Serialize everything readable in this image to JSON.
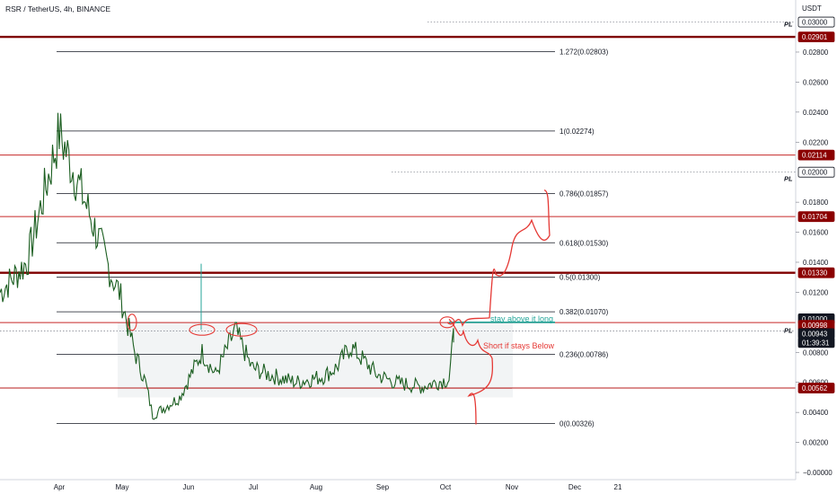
{
  "header": {
    "symbol": "RSR / TetherUS, 4h, BINANCE"
  },
  "price_axis": {
    "currency": "USDT",
    "ticks": [
      "0.02800",
      "0.02600",
      "0.02400",
      "0.02200",
      "0.01800",
      "0.01600",
      "0.01400",
      "0.01200",
      "0.00800",
      "0.00600",
      "0.00400",
      "0.00200",
      "−0.00000"
    ]
  },
  "price_tags": [
    {
      "label": "0.03000",
      "style": "outline"
    },
    {
      "label": "0.02901",
      "style": "red"
    },
    {
      "label": "0.02114",
      "style": "red"
    },
    {
      "label": "0.02000",
      "style": "outline"
    },
    {
      "label": "0.01704",
      "style": "red"
    },
    {
      "label": "0.01330",
      "style": "red"
    },
    {
      "label": "0.01000",
      "style": "black"
    },
    {
      "label": "0.00998",
      "style": "red"
    },
    {
      "label": "0.00943",
      "style": "black"
    },
    {
      "label": "01:39:31",
      "style": "black"
    },
    {
      "label": "0.00562",
      "style": "red"
    }
  ],
  "pl_labels": [
    "PL",
    "PL",
    "PL"
  ],
  "time_axis": [
    "Apr",
    "May",
    "Jun",
    "Jul",
    "Aug",
    "Sep",
    "Oct",
    "Nov",
    "Dec",
    "21"
  ],
  "fib_levels": [
    {
      "label": "1.272(0.02803)",
      "value": 0.02803
    },
    {
      "label": "1(0.02274)",
      "value": 0.02274
    },
    {
      "label": "0.786(0.01857)",
      "value": 0.01857
    },
    {
      "label": "0.618(0.01530)",
      "value": 0.0153
    },
    {
      "label": "0.5(0.01300)",
      "value": 0.013
    },
    {
      "label": "0.382(0.01070)",
      "value": 0.0107
    },
    {
      "label": "0.236(0.00786)",
      "value": 0.00786
    },
    {
      "label": "0(0.00326)",
      "value": 0.00326
    }
  ],
  "horizontal_lines": [
    {
      "value": 0.02901,
      "color": "#7f0000"
    },
    {
      "value": 0.02114,
      "color": "#c62828"
    },
    {
      "value": 0.01704,
      "color": "#c62828"
    },
    {
      "value": 0.0133,
      "color": "#7f0000"
    },
    {
      "value": 0.00998,
      "color": "#c62828"
    },
    {
      "value": 0.00562,
      "color": "#b71c1c"
    }
  ],
  "annotations": {
    "green_note": "stay above it long",
    "red_note": "Short if stays Below"
  },
  "colors": {
    "candles": "#1b5e20",
    "bull": "#26a69a",
    "red_line": "#c62828",
    "dark_red": "#7f0000",
    "green_note": "#26a69a",
    "red_note": "#e53935",
    "box": "#eceff1"
  },
  "chart_data": {
    "type": "line",
    "title": "RSR / TetherUS, 4h, BINANCE",
    "xlabel": "",
    "ylabel": "",
    "ylim": [
      0,
      0.03
    ],
    "x": [
      "Mar",
      "Apr",
      "Apr",
      "Apr",
      "Apr",
      "May",
      "May",
      "May",
      "May",
      "Jun",
      "Jun",
      "Jun",
      "Jun",
      "Jul",
      "Jul",
      "Jul",
      "Jul",
      "Aug",
      "Aug",
      "Aug",
      "Aug",
      "Sep",
      "Sep",
      "Sep",
      "Sep",
      "Oct"
    ],
    "series": [
      {
        "values": [
          0.012,
          0.014,
          0.0226,
          0.018,
          0.013,
          0.012,
          0.008,
          0.006,
          0.0038,
          0.005,
          0.008,
          0.0065,
          0.0095,
          0.007,
          0.0065,
          0.006,
          0.0064,
          0.007,
          0.0084,
          0.0065,
          0.006,
          0.0057,
          0.006,
          0.0062,
          0.009,
          0.00943
        ]
      }
    ]
  }
}
